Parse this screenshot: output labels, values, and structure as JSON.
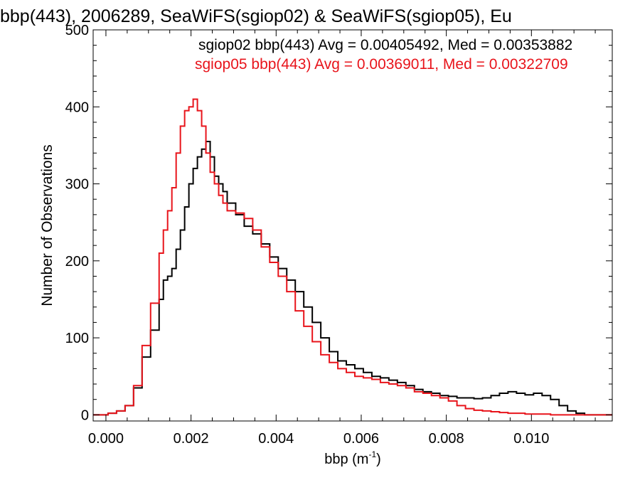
{
  "chart_data": {
    "type": "histogram-step",
    "title": "bbp(443), 2006289, SeaWiFS(sgiop02) & SeaWiFS(sgiop05), Eu",
    "xlabel_base": "bbp (m",
    "xlabel_exp": "-1",
    "xlabel_close": ")",
    "ylabel": "Number of Observations",
    "xlim": [
      -0.0003,
      0.0119
    ],
    "ylim": [
      -8,
      500
    ],
    "xticks": [
      0.0,
      0.002,
      0.004,
      0.006,
      0.008,
      0.01
    ],
    "xtick_labels": [
      "0.000",
      "0.002",
      "0.004",
      "0.006",
      "0.008",
      "0.010"
    ],
    "yticks": [
      0,
      100,
      200,
      300,
      400,
      500
    ],
    "ytick_labels": [
      "0",
      "100",
      "200",
      "300",
      "400",
      "500"
    ],
    "legend_position": "top-right",
    "series": [
      {
        "name": "sgiop02",
        "legend": "sgiop02 bbp(443) Avg = 0.00405492, Med = 0.00353882",
        "color": "#000000",
        "x": [
          0.0,
          0.0002,
          0.0004,
          0.0006,
          0.0008,
          0.001,
          0.0012,
          0.0013,
          0.0014,
          0.0015,
          0.0016,
          0.0017,
          0.0018,
          0.0019,
          0.002,
          0.0021,
          0.0022,
          0.0023,
          0.0024,
          0.0025,
          0.0026,
          0.0027,
          0.0028,
          0.003,
          0.0032,
          0.0034,
          0.0036,
          0.0038,
          0.004,
          0.0042,
          0.0044,
          0.0046,
          0.0048,
          0.005,
          0.0052,
          0.0054,
          0.0056,
          0.0058,
          0.006,
          0.0062,
          0.0064,
          0.0066,
          0.0068,
          0.007,
          0.0072,
          0.0074,
          0.0076,
          0.0078,
          0.008,
          0.0082,
          0.0084,
          0.0086,
          0.0088,
          0.009,
          0.0092,
          0.0094,
          0.0096,
          0.0098,
          0.01,
          0.0102,
          0.0104,
          0.0106,
          0.0108,
          0.011,
          0.0112,
          0.0114
        ],
        "values": [
          0,
          2,
          5,
          12,
          35,
          75,
          110,
          150,
          175,
          180,
          190,
          215,
          240,
          270,
          300,
          320,
          335,
          345,
          355,
          335,
          310,
          300,
          290,
          275,
          260,
          245,
          235,
          222,
          205,
          190,
          175,
          160,
          140,
          120,
          100,
          82,
          70,
          65,
          60,
          55,
          50,
          48,
          45,
          42,
          38,
          33,
          30,
          28,
          25,
          24,
          22,
          22,
          21,
          22,
          25,
          28,
          30,
          28,
          26,
          28,
          25,
          20,
          12,
          5,
          2,
          0
        ]
      },
      {
        "name": "sgiop05",
        "legend": "sgiop05 bbp(443) Avg = 0.00369011, Med = 0.00322709",
        "color": "#e8141b",
        "x": [
          0.0,
          0.0002,
          0.0004,
          0.0006,
          0.0008,
          0.001,
          0.0012,
          0.0013,
          0.0014,
          0.0015,
          0.0016,
          0.0017,
          0.0018,
          0.0019,
          0.002,
          0.0021,
          0.0022,
          0.0023,
          0.0024,
          0.0025,
          0.0026,
          0.0027,
          0.0028,
          0.003,
          0.0032,
          0.0034,
          0.0036,
          0.0038,
          0.004,
          0.0042,
          0.0044,
          0.0046,
          0.0048,
          0.005,
          0.0052,
          0.0054,
          0.0056,
          0.0058,
          0.006,
          0.0062,
          0.0064,
          0.0066,
          0.0068,
          0.007,
          0.0072,
          0.0074,
          0.0076,
          0.0078,
          0.008,
          0.0082,
          0.0084,
          0.0086,
          0.0088,
          0.009,
          0.0092,
          0.0094,
          0.0096,
          0.0098,
          0.01,
          0.0102,
          0.0104,
          0.0106,
          0.0108,
          0.011,
          0.0112,
          0.0114
        ],
        "values": [
          0,
          2,
          5,
          12,
          38,
          90,
          145,
          210,
          240,
          265,
          295,
          340,
          375,
          395,
          400,
          410,
          395,
          375,
          340,
          315,
          300,
          285,
          275,
          265,
          262,
          255,
          240,
          218,
          198,
          180,
          160,
          135,
          115,
          95,
          78,
          68,
          60,
          55,
          50,
          48,
          46,
          42,
          40,
          38,
          35,
          30,
          28,
          25,
          22,
          18,
          12,
          8,
          6,
          5,
          4,
          3,
          2,
          2,
          1,
          1,
          1,
          0,
          0,
          0,
          0,
          0
        ]
      }
    ]
  }
}
